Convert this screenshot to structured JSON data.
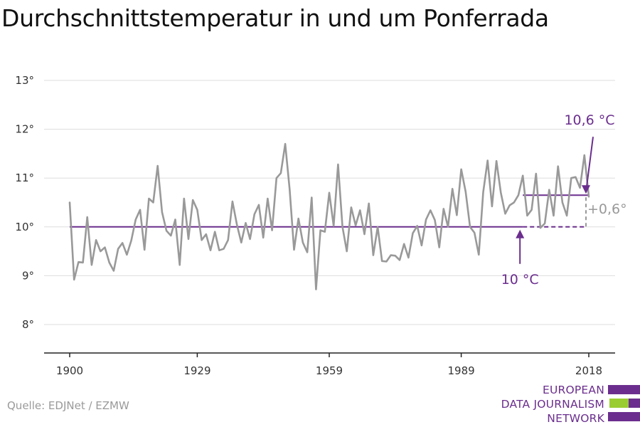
{
  "title": "Durchschnittstemperatur in und um Ponferrada",
  "source": "Quelle: EDJNet / EZMW",
  "logo": {
    "lines": [
      "EUROPEAN",
      "DATA JOURNALISM",
      "NETWORK"
    ]
  },
  "colors": {
    "line": "#999999",
    "accent": "#6b2e8e",
    "grid": "#dddddd",
    "logo_green": "#9acd32"
  },
  "chart_data": {
    "type": "line",
    "xlim": [
      1900,
      2018
    ],
    "ylim": [
      8,
      13
    ],
    "y_ticks": [
      8,
      9,
      10,
      11,
      12,
      13
    ],
    "y_tick_labels": [
      "8°",
      "9°",
      "10°",
      "11°",
      "12°",
      "13°"
    ],
    "x_ticks": [
      1900,
      1929,
      1959,
      1989,
      2018
    ],
    "x_tick_labels": [
      "1900",
      "1929",
      "1959",
      "1989",
      "2018"
    ],
    "grid": true,
    "series": [
      {
        "x": [
          1900,
          1901,
          1902,
          1903,
          1904,
          1905,
          1906,
          1907,
          1908,
          1909,
          1910,
          1911,
          1912,
          1913,
          1914,
          1915,
          1916,
          1917,
          1918,
          1919,
          1920,
          1921,
          1922,
          1923,
          1924,
          1925,
          1926,
          1927,
          1928,
          1929,
          1930,
          1931,
          1932,
          1933,
          1934,
          1935,
          1936,
          1937,
          1938,
          1939,
          1940,
          1941,
          1942,
          1943,
          1944,
          1945,
          1946,
          1947,
          1948,
          1949,
          1950,
          1951,
          1952,
          1953,
          1954,
          1955,
          1956,
          1957,
          1958,
          1959,
          1960,
          1961,
          1962,
          1963,
          1964,
          1965,
          1966,
          1967,
          1968,
          1969,
          1970,
          1971,
          1972,
          1973,
          1974,
          1975,
          1976,
          1977,
          1978,
          1979,
          1980,
          1981,
          1982,
          1983,
          1984,
          1985,
          1986,
          1987,
          1988,
          1989,
          1990,
          1991,
          1992,
          1993,
          1994,
          1995,
          1996,
          1997,
          1998,
          1999,
          2000,
          2001,
          2002,
          2003,
          2004,
          2005,
          2006,
          2007,
          2008,
          2009,
          2010,
          2011,
          2012,
          2013,
          2014,
          2015,
          2016,
          2017,
          2018
        ],
        "values": [
          10.5,
          8.92,
          9.28,
          9.27,
          10.2,
          9.22,
          9.73,
          9.5,
          9.58,
          9.27,
          9.1,
          9.55,
          9.67,
          9.43,
          9.72,
          10.15,
          10.35,
          9.53,
          10.58,
          10.5,
          11.25,
          10.3,
          9.92,
          9.82,
          10.15,
          9.22,
          10.58,
          9.75,
          10.55,
          10.35,
          9.73,
          9.85,
          9.52,
          9.9,
          9.52,
          9.55,
          9.73,
          10.52,
          10.05,
          9.68,
          10.08,
          9.75,
          10.26,
          10.45,
          9.78,
          10.58,
          9.93,
          11.0,
          11.1,
          11.7,
          10.77,
          9.53,
          10.17,
          9.68,
          9.48,
          10.6,
          8.72,
          9.93,
          9.9,
          10.7,
          10.02,
          11.28,
          10.0,
          9.5,
          10.4,
          10.03,
          10.34,
          9.85,
          10.48,
          9.42,
          10.0,
          9.3,
          9.29,
          9.42,
          9.41,
          9.32,
          9.65,
          9.37,
          9.87,
          10.02,
          9.62,
          10.15,
          10.34,
          10.14,
          9.58,
          10.37,
          10.0,
          10.78,
          10.24,
          11.18,
          10.72,
          10.0,
          9.88,
          9.43,
          10.71,
          11.36,
          10.42,
          11.35,
          10.7,
          10.27,
          10.44,
          10.5,
          10.65,
          11.05,
          10.23,
          10.35,
          11.09,
          9.98,
          10.07,
          10.76,
          10.23,
          11.24,
          10.5,
          10.23,
          11.0,
          11.02,
          10.8,
          11.47,
          10.62
        ]
      }
    ],
    "reference_lines": [
      {
        "value": 10.0,
        "from": 1900,
        "to": 2018,
        "dashed_from": 2003
      },
      {
        "value": 10.65,
        "from": 2003,
        "to": 2018
      }
    ],
    "annotations": [
      {
        "text": "10 °C",
        "x": 2003,
        "y": 10.0
      },
      {
        "text": "10,6 °C",
        "x": 2018,
        "y": 10.65
      },
      {
        "text": "+0,6°",
        "x": 2018,
        "y": 10.33
      }
    ]
  }
}
